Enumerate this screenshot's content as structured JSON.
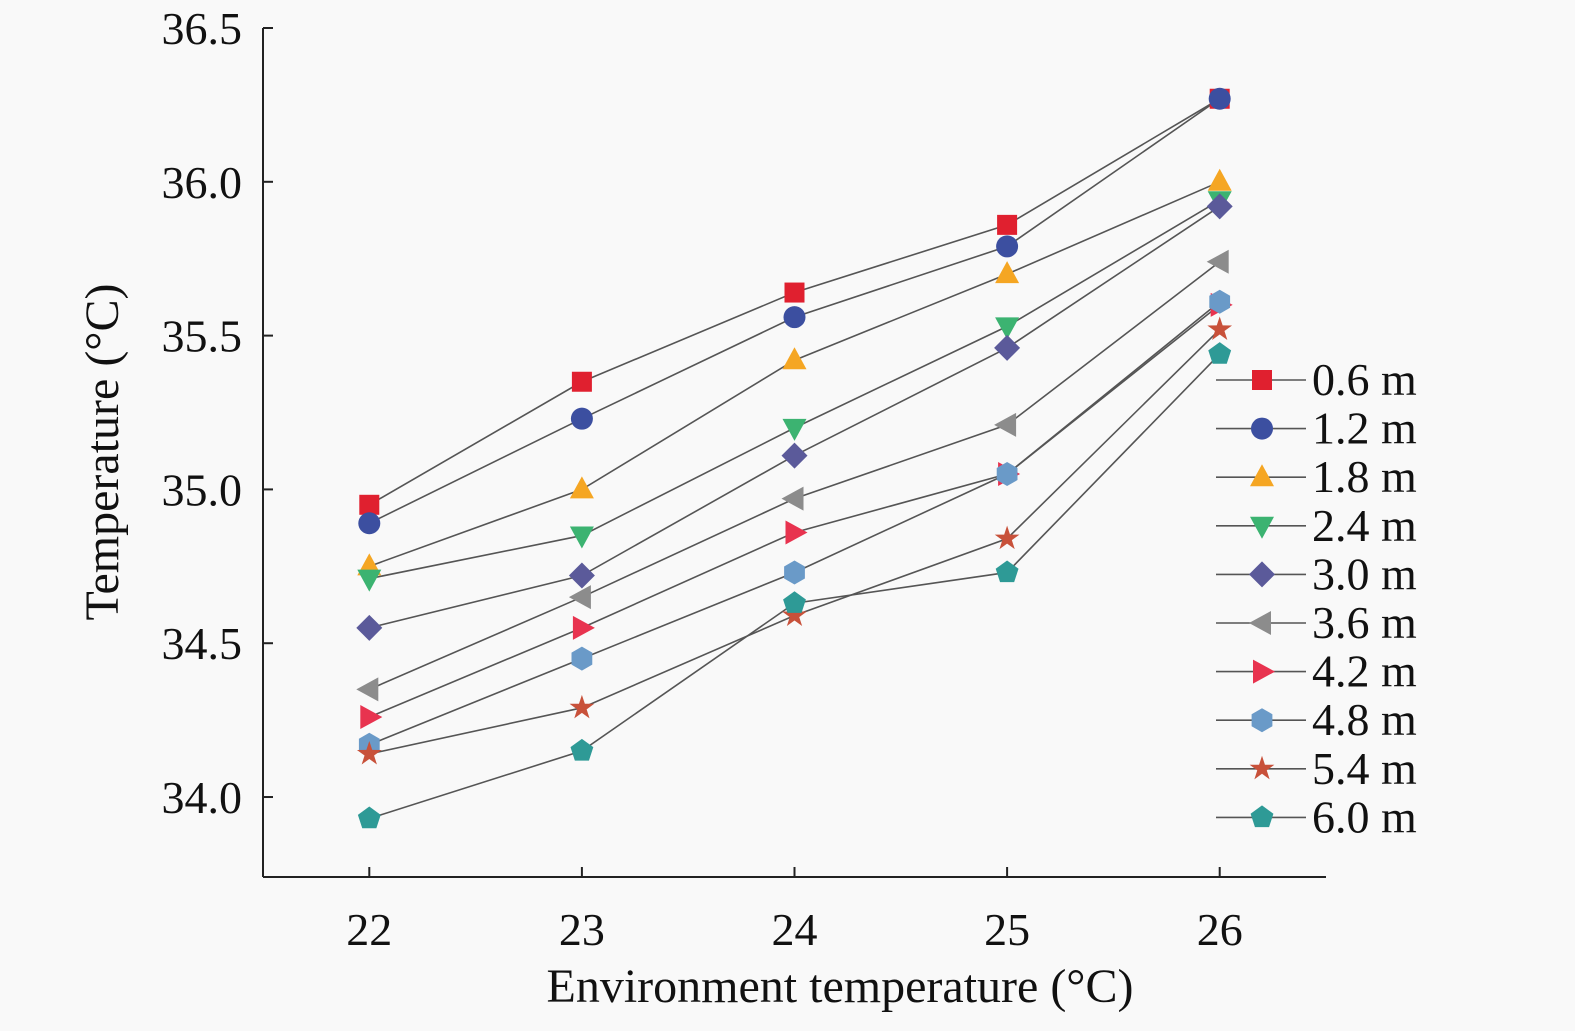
{
  "chart_data": {
    "type": "line",
    "title": "",
    "xlabel": "Environment temperature (°C)",
    "ylabel": "Temperature (°C)",
    "x": [
      22,
      23,
      24,
      25,
      26
    ],
    "xlim": [
      21.5,
      26.5
    ],
    "ylim": [
      33.74,
      36.5
    ],
    "xticks": [
      "22",
      "23",
      "24",
      "25",
      "26"
    ],
    "yticks": [
      "34.0",
      "34.5",
      "35.0",
      "35.5",
      "36.0",
      "36.5"
    ],
    "grid": false,
    "legend_position": "right",
    "series": [
      {
        "name": "0.6 m",
        "marker": "square",
        "color": "#e0202f",
        "values": [
          34.95,
          35.35,
          35.64,
          35.86,
          36.27
        ]
      },
      {
        "name": "1.2 m",
        "marker": "circle",
        "color": "#3c4fa0",
        "values": [
          34.89,
          35.23,
          35.56,
          35.79,
          36.27
        ]
      },
      {
        "name": "1.8 m",
        "marker": "triangle-up",
        "color": "#f5a623",
        "values": [
          34.75,
          35.0,
          35.42,
          35.7,
          36.0
        ]
      },
      {
        "name": "2.4 m",
        "marker": "triangle-down",
        "color": "#3cb371",
        "values": [
          34.71,
          34.85,
          35.2,
          35.53,
          35.94
        ]
      },
      {
        "name": "3.0 m",
        "marker": "diamond",
        "color": "#5b5a9a",
        "values": [
          34.55,
          34.72,
          35.11,
          35.46,
          35.92
        ]
      },
      {
        "name": "3.6 m",
        "marker": "triangle-left",
        "color": "#8c8c8c",
        "values": [
          34.35,
          34.65,
          34.97,
          35.21,
          35.74
        ]
      },
      {
        "name": "4.2 m",
        "marker": "triangle-right",
        "color": "#e8334f",
        "values": [
          34.26,
          34.55,
          34.86,
          35.05,
          35.6
        ]
      },
      {
        "name": "4.8 m",
        "marker": "hexagon",
        "color": "#6a9ac8",
        "values": [
          34.17,
          34.45,
          34.73,
          35.05,
          35.61
        ]
      },
      {
        "name": "5.4 m",
        "marker": "star",
        "color": "#c8513a",
        "values": [
          34.14,
          34.29,
          34.59,
          34.84,
          35.52
        ]
      },
      {
        "name": "6.0 m",
        "marker": "pentagon",
        "color": "#2e9a96",
        "values": [
          33.93,
          34.15,
          34.63,
          34.73,
          35.44
        ]
      }
    ]
  }
}
